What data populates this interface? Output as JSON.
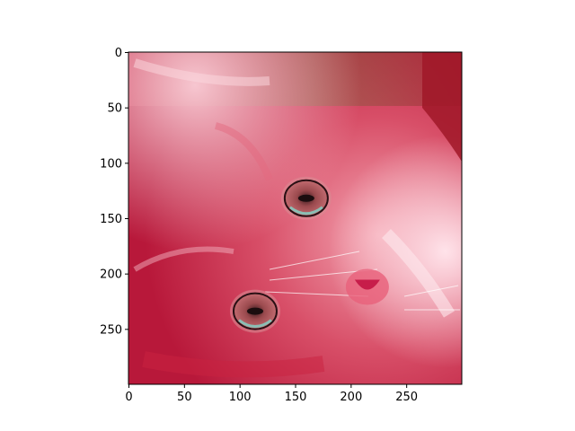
{
  "chart_data": {
    "type": "image",
    "subject": "close-up photo of a kitten (rotated, red-tinted)",
    "colormap_tint": "#c8283c",
    "x": {
      "range": [
        0,
        299
      ],
      "ticks": [
        0,
        50,
        100,
        150,
        200,
        250
      ],
      "tick_labels": [
        "0",
        "50",
        "100",
        "150",
        "200",
        "250"
      ]
    },
    "y": {
      "range": [
        0,
        299
      ],
      "inverted": true,
      "ticks": [
        0,
        50,
        100,
        150,
        200,
        250
      ],
      "tick_labels": [
        "0",
        "50",
        "100",
        "150",
        "200",
        "250"
      ]
    },
    "features": [
      {
        "name": "right-eye",
        "x": 160,
        "y": 132
      },
      {
        "name": "left-eye",
        "x": 114,
        "y": 234
      },
      {
        "name": "nose",
        "x": 215,
        "y": 212
      }
    ]
  }
}
